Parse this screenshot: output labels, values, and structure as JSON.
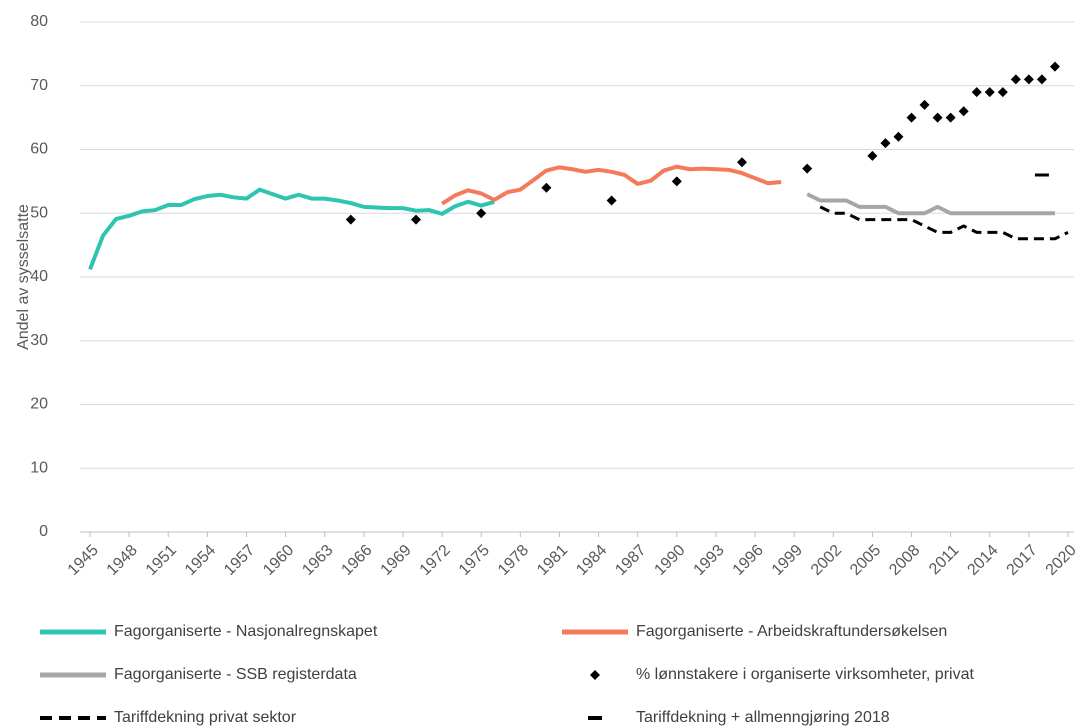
{
  "chart_data": {
    "type": "line",
    "ylabel": "Andel av sysselsatte",
    "xlim": [
      1945,
      2020
    ],
    "xticks": [
      1945,
      1948,
      1951,
      1954,
      1957,
      1960,
      1963,
      1966,
      1969,
      1972,
      1975,
      1978,
      1981,
      1984,
      1987,
      1990,
      1993,
      1996,
      1999,
      2002,
      2005,
      2008,
      2011,
      2014,
      2017,
      2020
    ],
    "ylim": [
      0,
      80
    ],
    "yticks": [
      0,
      10,
      20,
      30,
      40,
      50,
      60,
      70,
      80
    ],
    "grid": true,
    "legend": "bottom",
    "series": [
      {
        "name": "Fagorganiserte - Nasjonalregnskapet",
        "type": "line",
        "color": "#2ec4b0",
        "x": [
          1945,
          1946,
          1947,
          1948,
          1949,
          1950,
          1951,
          1952,
          1953,
          1954,
          1955,
          1956,
          1957,
          1958,
          1959,
          1960,
          1961,
          1962,
          1963,
          1964,
          1965,
          1966,
          1967,
          1968,
          1969,
          1970,
          1971,
          1972,
          1973,
          1974,
          1975,
          1976
        ],
        "values": [
          41.2,
          46.5,
          49.1,
          49.6,
          50.3,
          50.5,
          51.3,
          51.3,
          52.2,
          52.7,
          52.9,
          52.5,
          52.3,
          53.7,
          53,
          52.3,
          52.9,
          52.3,
          52.3,
          52,
          51.6,
          51,
          50.9,
          50.8,
          50.8,
          50.4,
          50.5,
          49.9,
          51.1,
          51.8,
          51.2,
          51.8
        ]
      },
      {
        "name": "Fagorganiserte - Arbeidskraftundersøkelsen",
        "type": "line",
        "color": "#f47a5a",
        "x": [
          1972,
          1973,
          1974,
          1975,
          1976,
          1977,
          1978,
          1979,
          1980,
          1981,
          1982,
          1983,
          1984,
          1985,
          1986,
          1987,
          1988,
          1989,
          1990,
          1991,
          1992,
          1993,
          1994,
          1995,
          1996,
          1997,
          1998
        ],
        "values": [
          51.5,
          52.8,
          53.6,
          53.1,
          52.1,
          53.3,
          53.7,
          55.2,
          56.7,
          57.2,
          56.9,
          56.5,
          56.8,
          56.5,
          56,
          54.6,
          55.1,
          56.7,
          57.3,
          56.9,
          57,
          56.9,
          56.8,
          56.3,
          55.5,
          54.7,
          54.9
        ]
      },
      {
        "name": "Fagorganiserte - SSB registerdata",
        "type": "line",
        "color": "#a6a6a6",
        "x": [
          2000,
          2001,
          2002,
          2003,
          2004,
          2005,
          2006,
          2007,
          2008,
          2009,
          2010,
          2011,
          2012,
          2013,
          2014,
          2015,
          2016,
          2017,
          2018,
          2019
        ],
        "values": [
          53,
          52,
          52,
          52,
          51,
          51,
          51,
          50,
          50,
          50,
          51,
          50,
          50,
          50,
          50,
          50,
          50,
          50,
          50,
          50
        ]
      },
      {
        "name": "% lønnstakere i organiserte virksomheter, privat",
        "type": "scatter",
        "marker": "diamond",
        "color": "#000000",
        "x": [
          1965,
          1970,
          1975,
          1980,
          1985,
          1990,
          1995,
          2000,
          2005,
          2006,
          2007,
          2008,
          2009,
          2010,
          2011,
          2012,
          2013,
          2014,
          2015,
          2016,
          2017,
          2018,
          2019
        ],
        "values": [
          49,
          49,
          50,
          54,
          52,
          55,
          58,
          57,
          59,
          61,
          62,
          65,
          67,
          65,
          65,
          66,
          69,
          69,
          69,
          71,
          71,
          71,
          73
        ]
      },
      {
        "name": "Tariffdekning privat sektor",
        "type": "line",
        "dashed": true,
        "color": "#000000",
        "x": [
          2001,
          2002,
          2003,
          2004,
          2005,
          2006,
          2007,
          2008,
          2009,
          2010,
          2011,
          2012,
          2013,
          2014,
          2015,
          2016,
          2017,
          2018,
          2019,
          2020
        ],
        "values": [
          51,
          50,
          50,
          49,
          49,
          49,
          49,
          49,
          48,
          47,
          47,
          48,
          47,
          47,
          47,
          46,
          46,
          46,
          46,
          47
        ]
      },
      {
        "name": "Tariffdekning + allmenngjøring 2018",
        "type": "scatter",
        "marker": "dash",
        "color": "#000000",
        "x": [
          2018
        ],
        "values": [
          56
        ]
      }
    ]
  }
}
